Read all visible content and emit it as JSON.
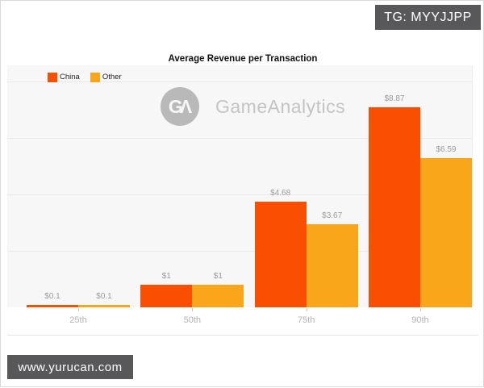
{
  "watermarks": {
    "top_right": "TG: MYYJJPP",
    "bottom_left": "www.yurucan.com"
  },
  "brand": {
    "logo_monogram": "GΛ",
    "name": "GameAnalytics"
  },
  "chart": {
    "title": "Average Revenue per Transaction",
    "legend": [
      {
        "label": "China",
        "color": "#FA4F00"
      },
      {
        "label": "Other",
        "color": "#FAA61B"
      }
    ]
  },
  "chart_data": {
    "type": "bar",
    "title": "Average Revenue per Transaction",
    "categories": [
      "25th",
      "50th",
      "75th",
      "90th"
    ],
    "series": [
      {
        "name": "China",
        "color": "#FA4F00",
        "values": [
          0.1,
          1,
          4.68,
          8.87
        ],
        "labels": [
          "$0.1",
          "$1",
          "$4.68",
          "$8.87"
        ]
      },
      {
        "name": "Other",
        "color": "#FAA61B",
        "values": [
          0.1,
          1,
          3.67,
          6.59
        ],
        "labels": [
          "$0.1",
          "$1",
          "$3.67",
          "$6.59"
        ]
      }
    ],
    "xlabel": "",
    "ylabel": "",
    "ylim": [
      0,
      10.7
    ],
    "grid": true,
    "grid_interval": 2.5,
    "legend_position": "top-left",
    "value_labels_shown": true,
    "y_axis_ticks_shown": false
  }
}
